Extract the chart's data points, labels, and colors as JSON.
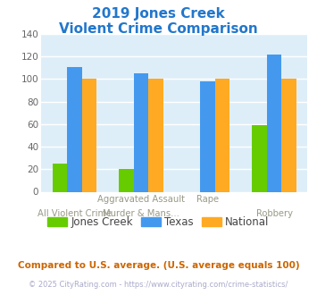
{
  "title_line1": "2019 Jones Creek",
  "title_line2": "Violent Crime Comparison",
  "title_color": "#2277cc",
  "jones_creek": [
    25,
    20,
    0,
    59
  ],
  "texas": [
    111,
    105,
    98,
    122
  ],
  "national": [
    100,
    100,
    100,
    100
  ],
  "jones_creek_color": "#66cc00",
  "texas_color": "#4499ee",
  "national_color": "#ffaa22",
  "ylim": [
    0,
    140
  ],
  "yticks": [
    0,
    20,
    40,
    60,
    80,
    100,
    120,
    140
  ],
  "bg_color": "#deeef8",
  "outer_bg_color": "#ffffff",
  "grid_color": "#ffffff",
  "row1_labels": [
    "",
    "Aggravated Assault",
    "Rape",
    ""
  ],
  "row2_labels": [
    "All Violent Crime",
    "Murder & Mans...",
    "",
    "Robbery"
  ],
  "footnote1": "Compared to U.S. average. (U.S. average equals 100)",
  "footnote2": "© 2025 CityRating.com - https://www.cityrating.com/crime-statistics/",
  "footnote1_color": "#cc6600",
  "footnote2_color": "#aaaacc",
  "legend_labels": [
    "Jones Creek",
    "Texas",
    "National"
  ],
  "bar_width": 0.22
}
